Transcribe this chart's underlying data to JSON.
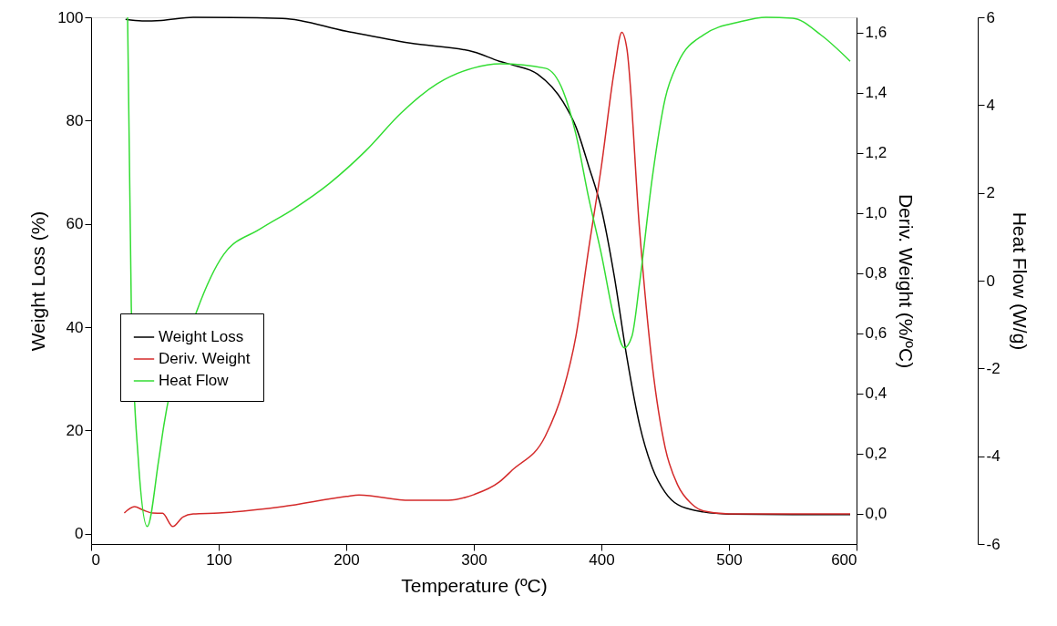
{
  "chart_data": {
    "type": "line",
    "xlabel": "Temperature (ºC)",
    "ylabel": "Weight Loss (%)",
    "y2label": "Deriv. Weight (%/ºC)",
    "y3label": "Heat Flow (W/g)",
    "xlim": [
      0,
      600
    ],
    "xticks": [
      0,
      100,
      200,
      300,
      400,
      500,
      600
    ],
    "ylim": [
      -2,
      100
    ],
    "yticks": [
      0,
      20,
      40,
      60,
      80,
      100
    ],
    "y2lim": [
      -0.1,
      1.65
    ],
    "y2ticks": [
      {
        "value": 0,
        "label": "0,0"
      },
      {
        "value": 0.2,
        "label": "0,2"
      },
      {
        "value": 0.4,
        "label": "0,4"
      },
      {
        "value": 0.6,
        "label": "0,6"
      },
      {
        "value": 0.8,
        "label": "0,8"
      },
      {
        "value": 1.0,
        "label": "1,0"
      },
      {
        "value": 1.2,
        "label": "1,2"
      },
      {
        "value": 1.4,
        "label": "1,4"
      },
      {
        "value": 1.6,
        "label": "1,6"
      }
    ],
    "y3lim": [
      -6,
      6
    ],
    "y3ticks": [
      -6,
      -4,
      -2,
      0,
      2,
      4,
      6
    ],
    "grid": false,
    "legend": "left",
    "marker": "none",
    "line_style": "solid",
    "series": [
      {
        "name": "Weight Loss",
        "color": "#000000",
        "axis": "y",
        "x": [
          27,
          40,
          55,
          80,
          150,
          200,
          250,
          300,
          320,
          330,
          350,
          370,
          380,
          390,
          400,
          410,
          420,
          430,
          440,
          450,
          460,
          480,
          500,
          550,
          595
        ],
        "values": [
          99.6,
          99.3,
          99.4,
          100,
          99.8,
          97.3,
          95,
          93.3,
          91.5,
          90.8,
          89,
          83.6,
          78.8,
          71.2,
          62.9,
          50,
          34.1,
          21,
          12.7,
          8,
          5.6,
          4.2,
          3.8,
          3.7,
          3.7
        ]
      },
      {
        "name": "Deriv. Weight",
        "color": "#d42a2a",
        "axis": "y2",
        "x": [
          26,
          34,
          41,
          48,
          56,
          64,
          72,
          80,
          100,
          150,
          200,
          210,
          250,
          280,
          300,
          320,
          330,
          356,
          370,
          380,
          390,
          400,
          410,
          416,
          420,
          430,
          440,
          450,
          460,
          470,
          480,
          500,
          550,
          595
        ],
        "values": [
          0.003,
          0.024,
          0.012,
          0.003,
          0.002,
          -0.042,
          -0.01,
          0.0,
          0.003,
          0.024,
          0.058,
          0.063,
          0.045,
          0.045,
          0.064,
          0.106,
          0.145,
          0.258,
          0.41,
          0.59,
          0.88,
          1.155,
          1.47,
          1.6,
          1.545,
          0.94,
          0.49,
          0.22,
          0.094,
          0.036,
          0.01,
          0.0,
          0.0,
          0.0
        ]
      },
      {
        "name": "Heat Flow",
        "color": "#33dd33",
        "axis": "y3",
        "x": [
          28.6,
          31.5,
          37,
          44,
          53,
          57,
          83,
          104,
          132,
          159,
          187,
          215,
          243,
          271,
          299,
          321,
          356,
          370,
          380,
          390,
          400,
          410,
          418,
          424,
          430,
          440,
          450,
          460,
          480,
          509,
          529,
          550,
          572,
          595
        ],
        "values": [
          6,
          -0.6,
          -4.08,
          -5.6,
          -4.08,
          -3.3,
          -0.68,
          0.6,
          1.17,
          1.64,
          2.22,
          2.95,
          3.82,
          4.48,
          4.84,
          4.94,
          4.84,
          4.32,
          3.34,
          1.89,
          0.6,
          -0.85,
          -1.53,
          -1.26,
          -0.04,
          2.37,
          4.15,
          4.96,
          5.6,
          5.9,
          6.0,
          5.98,
          5.6,
          5.0
        ]
      }
    ]
  }
}
